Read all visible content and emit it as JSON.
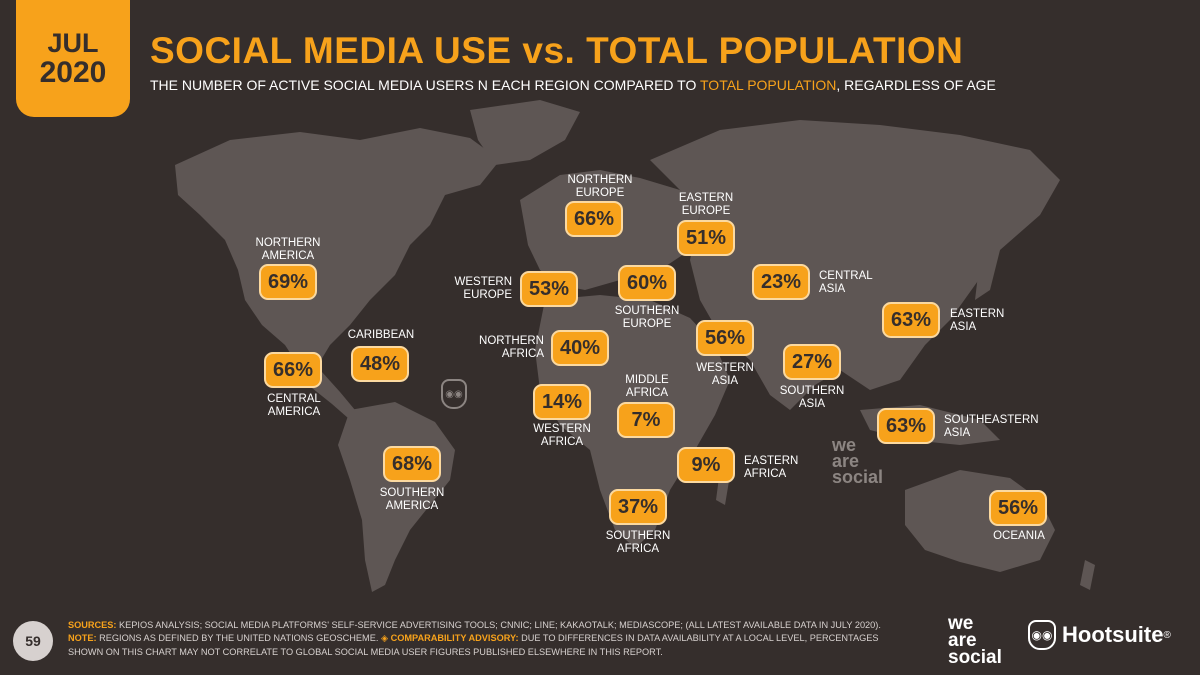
{
  "header": {
    "month": "JUL",
    "year": "2020",
    "title": "SOCIAL MEDIA USE vs. TOTAL POPULATION",
    "subtitle_pre": "THE NUMBER OF ACTIVE SOCIAL MEDIA USERS N EACH REGION COMPARED TO ",
    "subtitle_hl": "TOTAL POPULATION",
    "subtitle_post": ", REGARDLESS OF AGE"
  },
  "regions": {
    "northern_america": {
      "name_1": "NORTHERN",
      "name_2": "AMERICA",
      "value": "69%"
    },
    "central_america": {
      "name_1": "CENTRAL",
      "name_2": "AMERICA",
      "value": "66%"
    },
    "caribbean": {
      "name_1": "CARIBBEAN",
      "value": "48%"
    },
    "southern_america": {
      "name_1": "SOUTHERN",
      "name_2": "AMERICA",
      "value": "68%"
    },
    "northern_europe": {
      "name_1": "NORTHERN",
      "name_2": "EUROPE",
      "value": "66%"
    },
    "western_europe": {
      "name_1": "WESTERN",
      "name_2": "EUROPE",
      "value": "53%"
    },
    "southern_europe": {
      "name_1": "SOUTHERN",
      "name_2": "EUROPE",
      "value": "60%"
    },
    "eastern_europe": {
      "name_1": "EASTERN",
      "name_2": "EUROPE",
      "value": "51%"
    },
    "northern_africa": {
      "name_1": "NORTHERN",
      "name_2": "AFRICA",
      "value": "40%"
    },
    "western_africa": {
      "name_1": "WESTERN",
      "name_2": "AFRICA",
      "value": "14%"
    },
    "middle_africa": {
      "name_1": "MIDDLE",
      "name_2": "AFRICA",
      "value": "7%"
    },
    "eastern_africa": {
      "name_1": "EASTERN",
      "name_2": "AFRICA",
      "value": "9%"
    },
    "southern_africa": {
      "name_1": "SOUTHERN",
      "name_2": "AFRICA",
      "value": "37%"
    },
    "western_asia": {
      "name_1": "WESTERN",
      "name_2": "ASIA",
      "value": "56%"
    },
    "central_asia": {
      "name_1": "CENTRAL",
      "name_2": "ASIA",
      "value": "23%"
    },
    "southern_asia": {
      "name_1": "SOUTHERN",
      "name_2": "ASIA",
      "value": "27%"
    },
    "eastern_asia": {
      "name_1": "EASTERN",
      "name_2": "ASIA",
      "value": "63%"
    },
    "southeastern_asia": {
      "name_1": "SOUTHEASTERN",
      "name_2": "ASIA",
      "value": "63%"
    },
    "oceania": {
      "name_1": "OCEANIA",
      "value": "56%"
    }
  },
  "footer": {
    "page_number": "59",
    "sources_key": "SOURCES:",
    "sources_text": " KEPIOS ANALYSIS; SOCIAL MEDIA PLATFORMS' SELF-SERVICE ADVERTISING TOOLS; CNNIC; LINE; KAKAOTALK; MEDIASCOPE; (ALL LATEST AVAILABLE DATA IN JULY 2020).",
    "note_key": "NOTE:",
    "note_text": " REGIONS AS DEFINED BY THE UNITED NATIONS GEOSCHEME. ",
    "advisory_key": "◈ COMPARABILITY ADVISORY:",
    "advisory_text": " DUE TO DIFFERENCES IN DATA AVAILABILITY AT A LOCAL LEVEL, PERCENTAGES SHOWN ON THIS CHART MAY NOT CORRELATE TO GLOBAL SOCIAL MEDIA USER FIGURES PUBLISHED ELSEWHERE IN THIS REPORT."
  },
  "logos": {
    "we_are_social_1": "we",
    "we_are_social_2": "are",
    "we_are_social_3": "social",
    "hootsuite": "Hootsuite",
    "hootsuite_mark": "®"
  },
  "colors": {
    "background": "#352e2c",
    "accent": "#f7a21b",
    "land": "#5e5654"
  }
}
